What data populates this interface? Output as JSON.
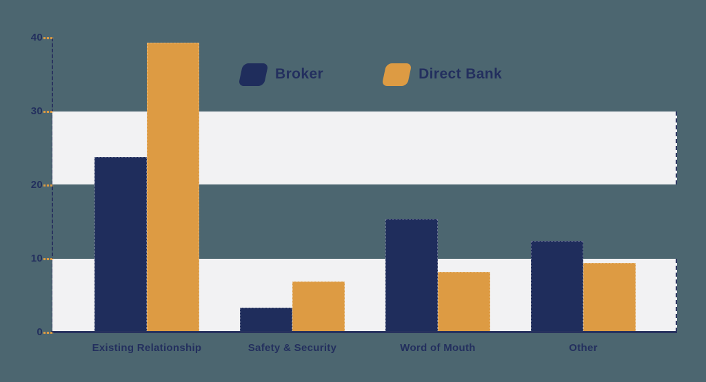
{
  "chart_data": {
    "type": "bar",
    "title": "",
    "xlabel": "",
    "ylabel": "",
    "categories": [
      "Existing Relationship",
      "Safety & Security",
      "Word of Mouth",
      "Other"
    ],
    "series": [
      {
        "name": "Broker",
        "color": "#1f2d5c",
        "values": [
          23.8,
          3.4,
          15.4,
          12.4
        ]
      },
      {
        "name": "Direct Bank",
        "color": "#dd9b43",
        "values": [
          39.3,
          6.9,
          8.2,
          9.4
        ]
      }
    ],
    "ylim": [
      0,
      40
    ],
    "y_ticks": [
      0,
      10,
      20,
      30,
      40
    ],
    "highlight_bands": [
      [
        0,
        10
      ],
      [
        20,
        30
      ]
    ],
    "grid": "alternating horizontal light bands",
    "legend_position": "top-center"
  },
  "colors": {
    "background": "#4c6670",
    "band": "#f2f2f3",
    "axis": "#2a345f",
    "tick": "#dd9b43",
    "text": "#232f5e",
    "broker": "#1f2d5c",
    "direct_bank": "#dd9b43"
  }
}
